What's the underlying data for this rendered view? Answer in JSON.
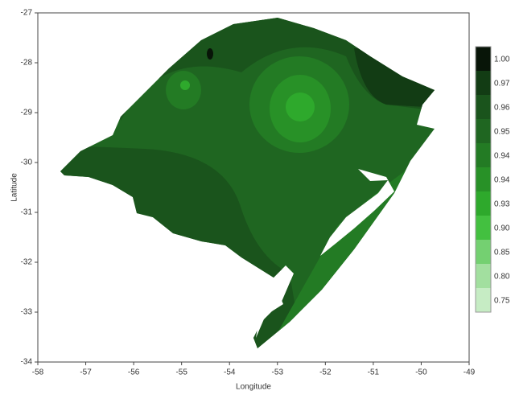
{
  "chart_data": {
    "type": "contour-map",
    "xlabel": "Longitude",
    "ylabel": "Latitude",
    "xlim": [
      -58,
      -49
    ],
    "xticks": [
      -58,
      -57,
      -56,
      -55,
      -54,
      -53,
      -52,
      -51,
      -50,
      -49
    ],
    "ylim": [
      -34,
      -27
    ],
    "yticks": [
      -34,
      -33,
      -32,
      -31,
      -30,
      -29,
      -28,
      -27
    ],
    "colorbar": [
      {
        "value": 0.75,
        "label": "0.75",
        "color": "#c6ecc4"
      },
      {
        "value": 0.8,
        "label": "0.80",
        "color": "#a2df9f"
      },
      {
        "value": 0.85,
        "label": "0.85",
        "color": "#74d071"
      },
      {
        "value": 0.9,
        "label": "0.90",
        "color": "#43c040"
      },
      {
        "value": 0.93,
        "label": "0.93",
        "color": "#2ea92c"
      },
      {
        "value": 0.94,
        "label": "0.94",
        "color": "#289127"
      },
      {
        "value": 0.94,
        "label": "0.94",
        "color": "#237b24"
      },
      {
        "value": 0.95,
        "label": "0.95",
        "color": "#1f6621"
      },
      {
        "value": 0.96,
        "label": "0.96",
        "color": "#1a541c"
      },
      {
        "value": 0.97,
        "label": "0.97",
        "color": "#123c14"
      },
      {
        "value": 1,
        "label": "1.00",
        "color": "#081508"
      }
    ]
  }
}
